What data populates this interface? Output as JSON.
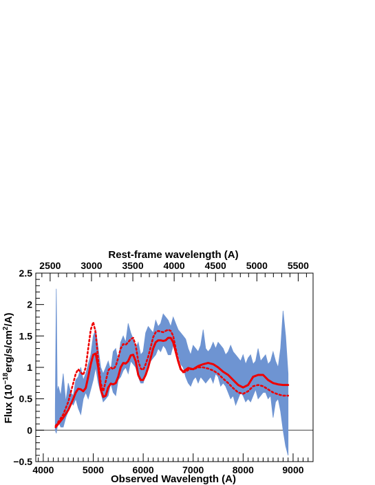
{
  "chart_data": {
    "type": "line",
    "title": "",
    "xlabel": "Observed Wavelength (A)",
    "x2label": "Rest-frame wavelength (A)",
    "ylabel_parts": {
      "base": "Flux (10",
      "exp1": "−18",
      "mid": "erg/s/cm",
      "exp2": "2",
      "end": "/A)"
    },
    "xlim": [
      3850,
      9400
    ],
    "ylim": [
      -0.5,
      2.5
    ],
    "x_ticks": [
      4000,
      5000,
      6000,
      7000,
      8000,
      9000
    ],
    "y_ticks": [
      -0.5,
      0,
      0.5,
      1,
      1.5,
      2,
      2.5
    ],
    "y_tick_labels": [
      "−0.5",
      "0",
      "0.5",
      "1",
      "1.5",
      "2",
      "2.5"
    ],
    "rest_ticks": [
      2500,
      3000,
      3500,
      4000,
      4500,
      5000,
      5500
    ],
    "rest_frame_factor": 1.655,
    "zero_line": 0,
    "grid": false,
    "colors": {
      "spectrum": "#6e94d2",
      "model": "#ee0000",
      "axes": "#000000",
      "zero_line": "#555555"
    },
    "series": [
      {
        "style": "noisy-fill",
        "x": [
          4240,
          4260,
          4280,
          4300,
          4350,
          4400,
          4450,
          4500,
          4550,
          4600,
          4650,
          4700,
          4750,
          4800,
          4850,
          4900,
          4950,
          5000,
          5050,
          5100,
          5150,
          5200,
          5250,
          5300,
          5350,
          5400,
          5450,
          5500,
          5550,
          5600,
          5650,
          5700,
          5750,
          5800,
          5850,
          5900,
          5950,
          6000,
          6050,
          6100,
          6150,
          6200,
          6250,
          6300,
          6350,
          6400,
          6450,
          6500,
          6550,
          6600,
          6650,
          6700,
          6750,
          6800,
          6850,
          6900,
          6950,
          7000,
          7050,
          7100,
          7150,
          7200,
          7250,
          7300,
          7350,
          7400,
          7450,
          7500,
          7550,
          7600,
          7650,
          7700,
          7750,
          7800,
          7850,
          7900,
          7950,
          8000,
          8050,
          8100,
          8150,
          8200,
          8250,
          8300,
          8350,
          8400,
          8450,
          8500,
          8550,
          8600,
          8650,
          8700,
          8750,
          8800,
          8850,
          8900
        ],
        "y_low": [
          0.0,
          -0.05,
          0.05,
          0.15,
          0.05,
          0.05,
          0.2,
          0.3,
          0.45,
          0.4,
          0.5,
          0.35,
          0.25,
          0.5,
          0.6,
          0.5,
          0.65,
          0.8,
          1.0,
          0.75,
          0.6,
          0.45,
          0.5,
          0.55,
          0.75,
          0.6,
          0.55,
          0.8,
          0.85,
          0.95,
          1.0,
          0.9,
          1.1,
          1.05,
          1.0,
          0.85,
          0.75,
          0.75,
          0.9,
          1.0,
          1.1,
          1.15,
          1.2,
          1.3,
          1.25,
          1.35,
          1.3,
          1.2,
          1.2,
          1.35,
          1.3,
          1.2,
          1.05,
          1.0,
          0.85,
          0.75,
          0.7,
          0.8,
          0.85,
          0.75,
          0.85,
          0.8,
          0.75,
          0.8,
          0.85,
          0.75,
          0.9,
          0.85,
          0.7,
          0.75,
          0.7,
          0.6,
          0.5,
          0.55,
          0.4,
          0.5,
          0.6,
          0.55,
          0.45,
          0.5,
          0.45,
          0.55,
          0.65,
          0.5,
          0.55,
          0.6,
          0.6,
          0.5,
          0.55,
          0.2,
          0.45,
          0.5,
          0.3,
          0.0,
          -0.25,
          -0.4
        ],
        "y_high": [
          0.35,
          2.25,
          0.6,
          0.7,
          0.55,
          0.9,
          0.45,
          0.75,
          0.6,
          0.55,
          0.8,
          0.85,
          1.0,
          0.8,
          0.9,
          1.05,
          1.2,
          1.5,
          1.6,
          1.3,
          1.0,
          0.9,
          1.0,
          1.1,
          0.95,
          1.25,
          1.3,
          1.1,
          1.4,
          1.5,
          1.4,
          1.7,
          1.55,
          1.45,
          1.3,
          1.4,
          1.2,
          1.25,
          1.55,
          1.65,
          1.6,
          1.55,
          1.75,
          1.65,
          1.7,
          1.85,
          1.8,
          1.75,
          1.65,
          1.8,
          1.7,
          1.6,
          1.55,
          1.5,
          1.45,
          1.3,
          1.2,
          1.35,
          1.3,
          1.25,
          1.35,
          1.6,
          1.3,
          1.25,
          1.3,
          1.4,
          1.3,
          1.4,
          1.35,
          1.3,
          1.2,
          1.25,
          1.35,
          1.25,
          1.2,
          1.15,
          1.1,
          1.2,
          1.05,
          1.15,
          1.2,
          1.05,
          1.1,
          1.3,
          1.1,
          1.15,
          1.2,
          1.05,
          1.1,
          1.25,
          1.1,
          1.0,
          1.3,
          1.9,
          1.5,
          0.9
        ]
      },
      {
        "style": "solid",
        "x": [
          4250,
          4300,
          4400,
          4500,
          4600,
          4650,
          4700,
          4750,
          4800,
          4850,
          4900,
          4950,
          5000,
          5050,
          5100,
          5150,
          5200,
          5250,
          5300,
          5350,
          5400,
          5450,
          5500,
          5550,
          5600,
          5650,
          5700,
          5750,
          5800,
          5850,
          5900,
          5950,
          6000,
          6050,
          6100,
          6150,
          6200,
          6250,
          6300,
          6350,
          6400,
          6450,
          6500,
          6550,
          6600,
          6650,
          6700,
          6750,
          6800,
          6850,
          6900,
          6950,
          7000,
          7100,
          7200,
          7300,
          7400,
          7500,
          7600,
          7700,
          7800,
          7900,
          8000,
          8100,
          8200,
          8300,
          8400,
          8500,
          8600,
          8700,
          8800,
          8900
        ],
        "y": [
          0.05,
          0.1,
          0.2,
          0.32,
          0.5,
          0.6,
          0.66,
          0.65,
          0.62,
          0.67,
          0.85,
          1.05,
          1.2,
          1.22,
          1.0,
          0.65,
          0.53,
          0.55,
          0.68,
          0.74,
          0.73,
          0.75,
          0.85,
          1.0,
          1.07,
          1.06,
          1.1,
          1.19,
          1.2,
          1.1,
          0.88,
          0.8,
          0.8,
          0.88,
          1.0,
          1.15,
          1.3,
          1.4,
          1.43,
          1.43,
          1.42,
          1.43,
          1.47,
          1.47,
          1.4,
          1.25,
          1.1,
          0.97,
          0.93,
          0.96,
          0.99,
          0.98,
          0.97,
          1.02,
          1.05,
          1.07,
          1.05,
          1.0,
          0.93,
          0.88,
          0.8,
          0.72,
          0.68,
          0.72,
          0.85,
          0.88,
          0.88,
          0.8,
          0.75,
          0.73,
          0.72,
          0.72
        ]
      },
      {
        "style": "dotted",
        "x": [
          4250,
          4300,
          4400,
          4500,
          4550,
          4600,
          4650,
          4700,
          4750,
          4800,
          4850,
          4900,
          4950,
          5000,
          5050,
          5100,
          5150,
          5200,
          5250,
          5300,
          5350,
          5400,
          5450,
          5500,
          5550,
          5600,
          5650,
          5700,
          5750,
          5800,
          5850,
          5900,
          5950,
          6000,
          6050,
          6100,
          6150,
          6200,
          6250,
          6300,
          6350,
          6400,
          6450,
          6500,
          6550,
          6600,
          6650,
          6700,
          6750,
          6800,
          6850,
          6900,
          6950,
          7000,
          7100,
          7200,
          7300,
          7400,
          7500,
          7600,
          7700,
          7800,
          7900,
          8000,
          8100,
          8200,
          8300,
          8400,
          8500,
          8600,
          8700,
          8800,
          8900
        ],
        "y": [
          0.07,
          0.13,
          0.25,
          0.45,
          0.6,
          0.75,
          0.9,
          0.97,
          0.92,
          0.88,
          1.0,
          1.3,
          1.6,
          1.72,
          1.55,
          1.1,
          0.75,
          0.62,
          0.78,
          0.95,
          1.0,
          0.97,
          1.02,
          1.15,
          1.3,
          1.37,
          1.36,
          1.4,
          1.45,
          1.47,
          1.35,
          1.1,
          0.98,
          0.96,
          1.05,
          1.17,
          1.32,
          1.48,
          1.56,
          1.58,
          1.57,
          1.56,
          1.58,
          1.6,
          1.58,
          1.5,
          1.3,
          1.12,
          0.98,
          0.92,
          0.93,
          0.96,
          0.97,
          0.97,
          1.0,
          1.0,
          0.98,
          0.95,
          0.9,
          0.82,
          0.75,
          0.67,
          0.6,
          0.58,
          0.62,
          0.7,
          0.72,
          0.7,
          0.65,
          0.6,
          0.57,
          0.55,
          0.55
        ]
      }
    ]
  }
}
